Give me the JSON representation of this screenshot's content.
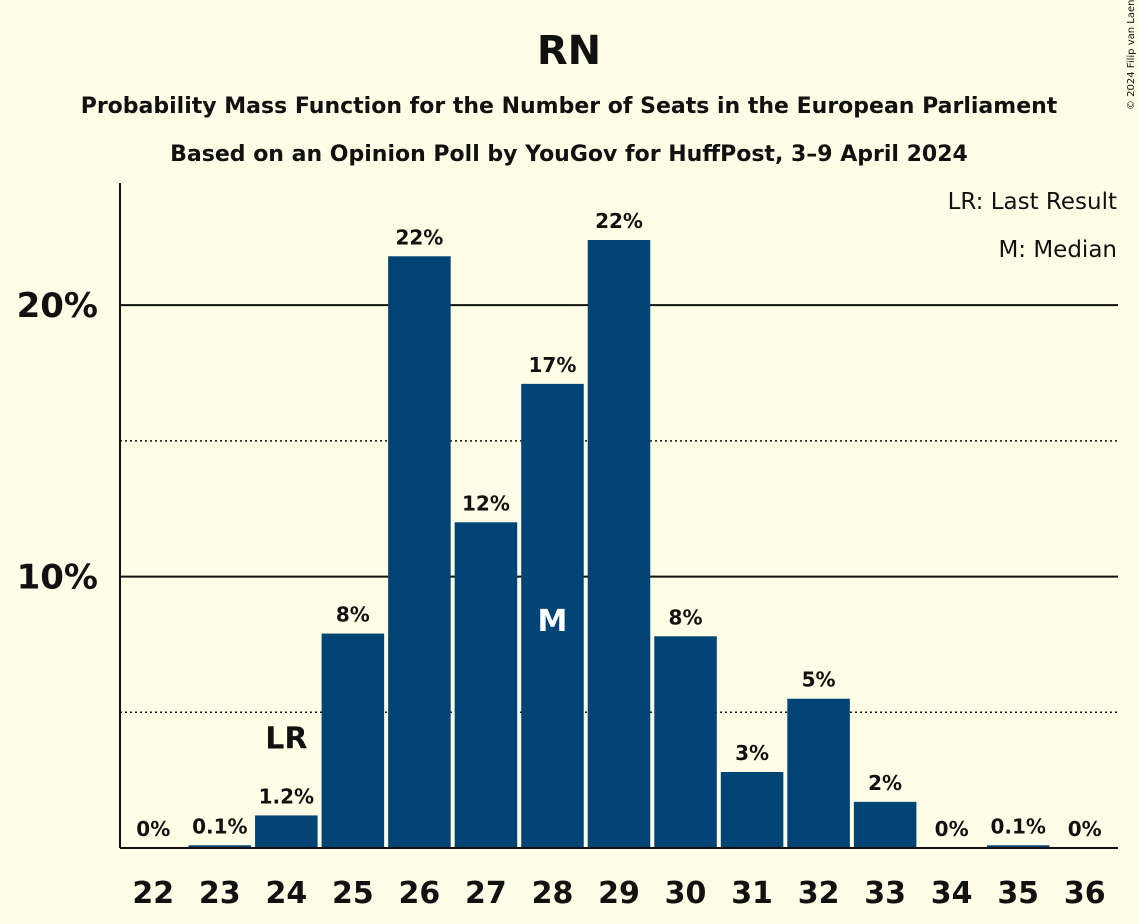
{
  "header": {
    "title": "RN",
    "subtitle1": "Probability Mass Function for the Number of Seats in the European Parliament",
    "subtitle2": "Based on an Opinion Poll by YouGov for HuffPost, 3–9 April 2024"
  },
  "legend": {
    "last_result": "LR: Last Result",
    "median": "M: Median"
  },
  "copyright": "© 2024 Filip van Laenen",
  "colors": {
    "bar": "#004375",
    "background": "#fffde6",
    "text": "#111111",
    "gridline": "#111111"
  },
  "chart_data": {
    "type": "bar",
    "categories": [
      "22",
      "23",
      "24",
      "25",
      "26",
      "27",
      "28",
      "29",
      "30",
      "31",
      "32",
      "33",
      "34",
      "35",
      "36"
    ],
    "values": [
      0,
      0.1,
      1.2,
      7.9,
      21.8,
      12.0,
      17.1,
      22.4,
      7.8,
      2.8,
      5.5,
      1.7,
      0,
      0.1,
      0
    ],
    "data_labels": [
      "0%",
      "0.1%",
      "1.2%",
      "8%",
      "22%",
      "12%",
      "17%",
      "22%",
      "8%",
      "3%",
      "5%",
      "2%",
      "0%",
      "0.1%",
      "0%"
    ],
    "yticks": [
      10,
      20
    ],
    "ytick_labels": [
      "10%",
      "20%"
    ],
    "minor_gridlines": [
      5,
      15
    ],
    "ylim": [
      0,
      24.5
    ],
    "last_result_label": "LR",
    "last_result_category": "24",
    "median_label": "M",
    "median_category": "28",
    "legend_position": "top-right"
  }
}
